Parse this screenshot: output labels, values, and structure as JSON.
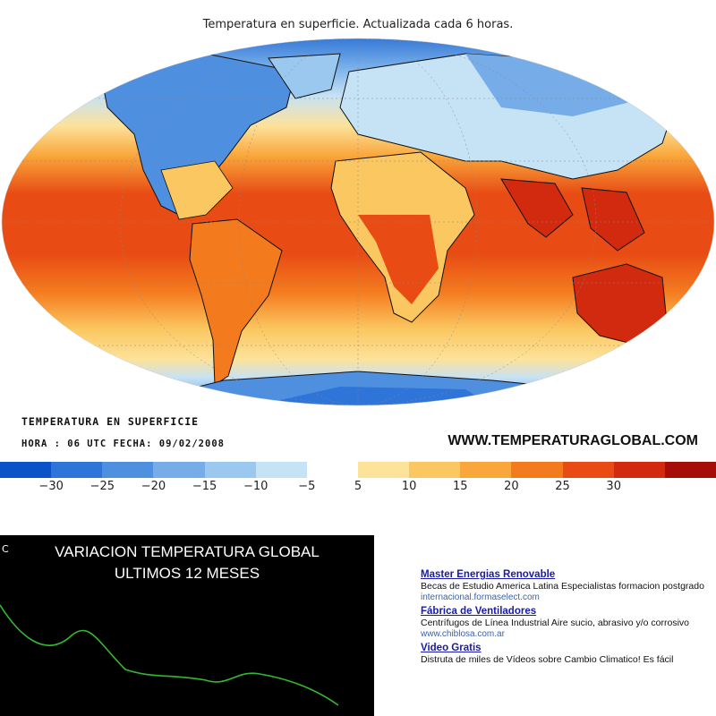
{
  "map": {
    "caption": "Temperatura en superficie. Actualizada cada 6 horas.",
    "info_title": "TEMPERATURA EN SUPERFICIE",
    "info_time": "HORA : 06 UTC  FECHA: 09/02/2008",
    "website": "WWW.TEMPERATURAGLOBAL.COM"
  },
  "legend": {
    "colors": [
      "#0a52c8",
      "#2f74d8",
      "#4f8fe0",
      "#76ade8",
      "#9ac8ef",
      "#c6e2f5",
      "#ffffff",
      "#fde29a",
      "#fbc760",
      "#f9a63a",
      "#f47a1e",
      "#e84c14",
      "#d22a0e",
      "#a60d08"
    ],
    "labels": [
      "−30",
      "−25",
      "−20",
      "−15",
      "−10",
      "−5",
      "5",
      "10",
      "15",
      "20",
      "25",
      "30"
    ]
  },
  "chart": {
    "title_line1": "VARIACION TEMPERATURA GLOBAL",
    "title_line2": "ULTIMOS 12 MESES",
    "unit": "C",
    "line_color": "#33b833"
  },
  "ads": [
    {
      "title": "Master Energias Renovable",
      "text": "Becas de Estudio America Latina Especialistas formacion postgrado",
      "url": "internacional.formaselect.com"
    },
    {
      "title": "Fábrica de Ventiladores",
      "text": "Centrífugos de Línea Industrial Aire sucio, abrasivo y/o corrosivo",
      "url": "www.chiblosa.com.ar"
    },
    {
      "title": "Video Gratis",
      "text": "Distruta de miles de Vídeos sobre Cambio Climatico! Es fácil",
      "url": ""
    }
  ]
}
